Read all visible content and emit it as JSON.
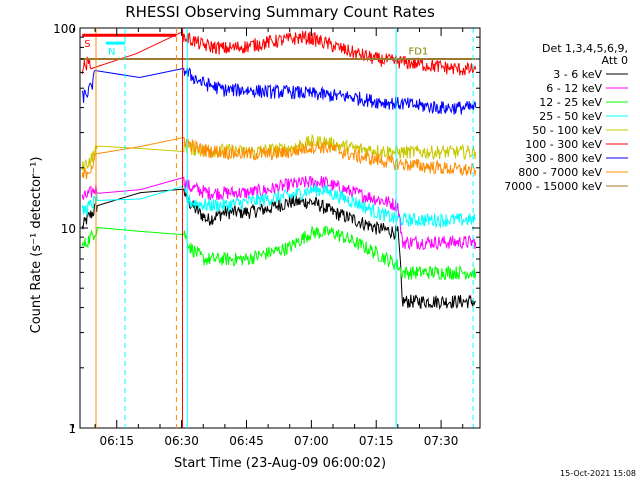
{
  "chart_data": {
    "type": "line",
    "title": "RHESSI Observing Summary Count Rates",
    "xlabel": "Start Time (23-Aug-09 06:00:02)",
    "ylabel": "Count Rate (s⁻¹ detector⁻¹)",
    "xlim_min": [
      6.5,
      99
    ],
    "ylim": [
      1,
      100
    ],
    "yscale": "log",
    "x_tick_labels": [
      {
        "min": 15,
        "label": "06:15"
      },
      {
        "min": 30,
        "label": "06:30"
      },
      {
        "min": 45,
        "label": "06:45"
      },
      {
        "min": 60,
        "label": "07:00"
      },
      {
        "min": 75,
        "label": "07:15"
      },
      {
        "min": 90,
        "label": "07:30"
      }
    ],
    "y_tick_labels": [
      {
        "value": 1,
        "label": "1"
      },
      {
        "value": 10,
        "label": "10"
      },
      {
        "value": 100,
        "label": "100"
      }
    ],
    "legend_header": [
      "Det 1,3,4,5,6,9,",
      "Att 0"
    ],
    "legend_position": "right",
    "series": [
      {
        "name": "3 - 6 keV",
        "color": "#000000",
        "points": [
          [
            7,
            10
          ],
          [
            8,
            11
          ],
          [
            9.5,
            12
          ],
          [
            10.5,
            13
          ],
          [
            30.5,
            16
          ],
          [
            31,
            14
          ],
          [
            33,
            12.5
          ],
          [
            36,
            11
          ],
          [
            40,
            12
          ],
          [
            45,
            12
          ],
          [
            50,
            12.5
          ],
          [
            55,
            13.5
          ],
          [
            60,
            13.5
          ],
          [
            62,
            13
          ],
          [
            65,
            12
          ],
          [
            70,
            11
          ],
          [
            75,
            10
          ],
          [
            80,
            9.5
          ],
          [
            81,
            4.3
          ],
          [
            84,
            4.3
          ],
          [
            88,
            4.3
          ],
          [
            92,
            4.3
          ],
          [
            95,
            4.3
          ],
          [
            98,
            4.3
          ]
        ]
      },
      {
        "name": "6 - 12 keV",
        "color": "#ff00ff",
        "points": [
          [
            7,
            14
          ],
          [
            9,
            15
          ],
          [
            10.5,
            16
          ],
          [
            30.5,
            17
          ],
          [
            32,
            16
          ],
          [
            36,
            15
          ],
          [
            40,
            15
          ],
          [
            45,
            15
          ],
          [
            50,
            15.5
          ],
          [
            55,
            16.5
          ],
          [
            60,
            17
          ],
          [
            63,
            17
          ],
          [
            66,
            16
          ],
          [
            70,
            15
          ],
          [
            75,
            14
          ],
          [
            80,
            13
          ],
          [
            81,
            8.5
          ],
          [
            85,
            8.5
          ],
          [
            90,
            8.5
          ],
          [
            95,
            8.5
          ],
          [
            98,
            8.5
          ]
        ]
      },
      {
        "name": "12 - 25 keV",
        "color": "#00ff00",
        "points": [
          [
            7,
            8
          ],
          [
            9,
            9
          ],
          [
            10.5,
            10
          ],
          [
            30.5,
            9.5
          ],
          [
            32,
            8
          ],
          [
            35,
            7
          ],
          [
            40,
            7
          ],
          [
            45,
            7
          ],
          [
            50,
            7.5
          ],
          [
            55,
            8
          ],
          [
            60,
            9.5
          ],
          [
            65,
            9.5
          ],
          [
            70,
            8.5
          ],
          [
            75,
            7.5
          ],
          [
            80,
            6.5
          ],
          [
            81,
            6
          ],
          [
            85,
            6
          ],
          [
            90,
            6
          ],
          [
            95,
            6
          ],
          [
            98,
            6
          ]
        ]
      },
      {
        "name": "25 - 50 keV",
        "color": "#00ffff",
        "points": [
          [
            7,
            12
          ],
          [
            9,
            13
          ],
          [
            10.5,
            14
          ],
          [
            30.5,
            15
          ],
          [
            32,
            13.5
          ],
          [
            36,
            13
          ],
          [
            40,
            13
          ],
          [
            45,
            13.5
          ],
          [
            50,
            14
          ],
          [
            55,
            14.5
          ],
          [
            60,
            15.5
          ],
          [
            63,
            15.5
          ],
          [
            66,
            14.5
          ],
          [
            70,
            13.5
          ],
          [
            75,
            12
          ],
          [
            80,
            11
          ],
          [
            81,
            11
          ],
          [
            85,
            11
          ],
          [
            90,
            11
          ],
          [
            95,
            11
          ],
          [
            98,
            11
          ]
        ]
      },
      {
        "name": "50 - 100 keV",
        "color": "#c8c800",
        "points": [
          [
            7,
            20
          ],
          [
            9,
            22
          ],
          [
            10.5,
            25
          ],
          [
            30.5,
            26
          ],
          [
            32,
            25
          ],
          [
            36,
            24.5
          ],
          [
            40,
            24.5
          ],
          [
            45,
            24
          ],
          [
            50,
            24.5
          ],
          [
            55,
            25
          ],
          [
            60,
            27
          ],
          [
            63,
            27
          ],
          [
            66,
            26
          ],
          [
            70,
            25
          ],
          [
            75,
            24.5
          ],
          [
            80,
            24
          ],
          [
            85,
            24
          ],
          [
            90,
            24
          ],
          [
            95,
            24
          ],
          [
            98,
            24
          ]
        ]
      },
      {
        "name": "100 - 300 keV",
        "color": "#ff0000",
        "points": [
          [
            7,
            63
          ],
          [
            8,
            66
          ],
          [
            9,
            68
          ],
          [
            30,
            92
          ],
          [
            32,
            88
          ],
          [
            35,
            82
          ],
          [
            40,
            79
          ],
          [
            45,
            81
          ],
          [
            50,
            85
          ],
          [
            55,
            88
          ],
          [
            58,
            90
          ],
          [
            60,
            89
          ],
          [
            62,
            86
          ],
          [
            66,
            80
          ],
          [
            70,
            75
          ],
          [
            75,
            70
          ],
          [
            80,
            68
          ],
          [
            85,
            66
          ],
          [
            90,
            64
          ],
          [
            95,
            62
          ],
          [
            98,
            62
          ]
        ]
      },
      {
        "name": "300 - 800 keV",
        "color": "#0000ff",
        "points": [
          [
            7,
            45
          ],
          [
            8,
            47
          ],
          [
            9,
            50
          ],
          [
            10,
            58
          ],
          [
            30.5,
            62
          ],
          [
            32,
            58
          ],
          [
            35,
            53
          ],
          [
            40,
            49
          ],
          [
            45,
            49
          ],
          [
            50,
            48
          ],
          [
            55,
            48
          ],
          [
            60,
            47
          ],
          [
            65,
            46
          ],
          [
            70,
            45
          ],
          [
            75,
            43
          ],
          [
            80,
            42
          ],
          [
            85,
            41
          ],
          [
            90,
            40
          ],
          [
            95,
            40
          ],
          [
            98,
            40
          ]
        ]
      },
      {
        "name": "800 - 7000 keV",
        "color": "#ff8c00",
        "points": [
          [
            7,
            18
          ],
          [
            9,
            20
          ],
          [
            10,
            22
          ],
          [
            30.5,
            28
          ],
          [
            32,
            26
          ],
          [
            35,
            24.5
          ],
          [
            40,
            24
          ],
          [
            45,
            23.5
          ],
          [
            50,
            23.5
          ],
          [
            55,
            24
          ],
          [
            60,
            25.5
          ],
          [
            63,
            25.5
          ],
          [
            66,
            24.5
          ],
          [
            70,
            23
          ],
          [
            75,
            22
          ],
          [
            80,
            21
          ],
          [
            85,
            20.5
          ],
          [
            90,
            20
          ],
          [
            95,
            19.5
          ],
          [
            98,
            19.5
          ]
        ]
      },
      {
        "name": "7000 - 15000 keV",
        "color": "#a0782d",
        "points": [
          [
            6.5,
            70
          ],
          [
            30,
            70
          ],
          [
            60,
            70
          ],
          [
            98,
            70
          ]
        ]
      }
    ],
    "annotations": [
      {
        "text": "S",
        "color": "#ff0000",
        "min": 7,
        "value": 92,
        "bar_to": 28.8
      },
      {
        "text": "N",
        "color": "#00ffff",
        "min": 12.5,
        "value": 84,
        "bar_to": 16.9
      },
      {
        "text": "FD1",
        "color": "#808000",
        "min": 82,
        "value": 73
      }
    ],
    "vertical_markers": [
      {
        "min": 10.2,
        "color": "#ff8c00",
        "style": "solid"
      },
      {
        "min": 16.9,
        "color": "#00ffff",
        "style": "dashed"
      },
      {
        "min": 28.8,
        "color": "#ff8c00",
        "style": "dashed"
      },
      {
        "min": 30.2,
        "color": "#ff0000",
        "style": "solid"
      },
      {
        "min": 31.3,
        "color": "#00ffff",
        "style": "solid"
      },
      {
        "min": 79.6,
        "color": "#00ffff",
        "style": "solid"
      },
      {
        "min": 97.4,
        "color": "#00ffff",
        "style": "dashed"
      }
    ],
    "grid": false
  },
  "footer_stamp": "15-Oct-2021 15:08"
}
